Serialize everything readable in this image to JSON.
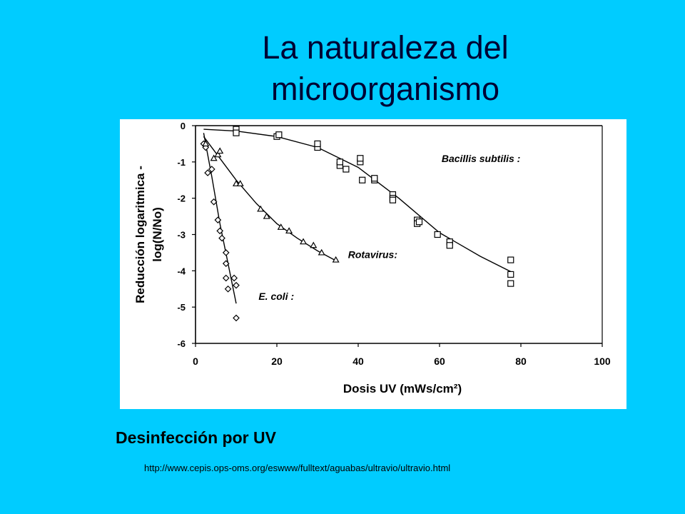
{
  "slide": {
    "title_line1": "La naturaleza del",
    "title_line2": "microorganismo",
    "caption": "Desinfección por UV",
    "source_url": "http://www.cepis.ops-oms.org/eswww/fulltext/aguabas/ultravio/ultravio.html"
  },
  "colors": {
    "background": "#00ccff",
    "title": "#000033",
    "plot": "#000000"
  },
  "chart_data": {
    "type": "scatter",
    "xlabel": "Dosis UV (mWs/cm²)",
    "ylabel_line1": "Reducción logaritmica -",
    "ylabel_line2": "log(N/No)",
    "xlim": [
      0,
      100
    ],
    "ylim": [
      -6,
      0
    ],
    "x_ticks": [
      0,
      20,
      40,
      60,
      80,
      100
    ],
    "y_ticks": [
      0,
      -1,
      -2,
      -3,
      -4,
      -5,
      -6
    ],
    "x_tick_labels": [
      "0",
      "20",
      "40",
      "60",
      "80",
      "100"
    ],
    "y_tick_labels": [
      "0",
      "-1",
      "-2",
      "-3",
      "-4",
      "-5",
      "-6"
    ],
    "grid": false,
    "series": [
      {
        "name": "E. coli :",
        "marker": "diamond",
        "points": [
          [
            2.0,
            -0.5
          ],
          [
            2.5,
            -0.6
          ],
          [
            3.0,
            -1.3
          ],
          [
            4.0,
            -1.2
          ],
          [
            4.5,
            -2.1
          ],
          [
            5.5,
            -2.6
          ],
          [
            6.0,
            -2.9
          ],
          [
            6.5,
            -3.1
          ],
          [
            7.5,
            -3.5
          ],
          [
            7.5,
            -3.8
          ],
          [
            7.5,
            -4.2
          ],
          [
            8.0,
            -4.5
          ],
          [
            9.5,
            -4.2
          ],
          [
            10.0,
            -4.4
          ],
          [
            10.0,
            -5.3
          ]
        ],
        "fit": [
          [
            2.0,
            -0.2
          ],
          [
            4.0,
            -1.4
          ],
          [
            6.0,
            -2.7
          ],
          [
            8.0,
            -3.8
          ],
          [
            10.0,
            -4.9
          ]
        ]
      },
      {
        "name": "Rotavirus:",
        "marker": "triangle",
        "points": [
          [
            2.5,
            -0.5
          ],
          [
            4.5,
            -0.9
          ],
          [
            5.5,
            -0.8
          ],
          [
            6.0,
            -0.7
          ],
          [
            10.0,
            -1.6
          ],
          [
            11.0,
            -1.6
          ],
          [
            16.0,
            -2.3
          ],
          [
            17.5,
            -2.5
          ],
          [
            21.0,
            -2.8
          ],
          [
            23.0,
            -2.9
          ],
          [
            26.5,
            -3.2
          ],
          [
            29.0,
            -3.3
          ],
          [
            31.0,
            -3.5
          ],
          [
            34.5,
            -3.7
          ]
        ],
        "fit": [
          [
            2.0,
            -0.3
          ],
          [
            6.0,
            -0.9
          ],
          [
            10.0,
            -1.5
          ],
          [
            15.0,
            -2.15
          ],
          [
            20.0,
            -2.7
          ],
          [
            25.0,
            -3.1
          ],
          [
            30.0,
            -3.45
          ],
          [
            35.0,
            -3.75
          ]
        ]
      },
      {
        "name": "Bacillis subtilis :",
        "marker": "square",
        "points": [
          [
            10.0,
            -0.1
          ],
          [
            10.0,
            -0.2
          ],
          [
            20.0,
            -0.3
          ],
          [
            20.5,
            -0.25
          ],
          [
            30.0,
            -0.6
          ],
          [
            30.0,
            -0.5
          ],
          [
            35.5,
            -1.1
          ],
          [
            35.5,
            -1.0
          ],
          [
            37.0,
            -1.2
          ],
          [
            40.5,
            -1.0
          ],
          [
            40.5,
            -0.9
          ],
          [
            41.0,
            -1.5
          ],
          [
            44.0,
            -1.5
          ],
          [
            44.0,
            -1.45
          ],
          [
            48.5,
            -1.9
          ],
          [
            48.5,
            -2.0
          ],
          [
            48.5,
            -2.05
          ],
          [
            54.5,
            -2.6
          ],
          [
            54.5,
            -2.7
          ],
          [
            55.0,
            -2.65
          ],
          [
            59.5,
            -3.0
          ],
          [
            62.5,
            -3.2
          ],
          [
            62.5,
            -3.3
          ],
          [
            77.5,
            -3.7
          ],
          [
            77.5,
            -4.1
          ],
          [
            77.5,
            -4.35
          ]
        ],
        "fit": [
          [
            2.0,
            -0.1
          ],
          [
            10.0,
            -0.15
          ],
          [
            20.0,
            -0.3
          ],
          [
            30.0,
            -0.6
          ],
          [
            40.0,
            -1.15
          ],
          [
            50.0,
            -2.0
          ],
          [
            60.0,
            -2.95
          ],
          [
            70.0,
            -3.6
          ],
          [
            78.0,
            -4.05
          ]
        ]
      }
    ],
    "annotations": [
      {
        "text": "Bacillis subtilis :",
        "x": 60.5,
        "y": -1.0
      },
      {
        "text": "Rotavirus:",
        "x": 37.5,
        "y": -3.65
      },
      {
        "text": "E. coli :",
        "x": 15.5,
        "y": -4.8
      }
    ]
  }
}
